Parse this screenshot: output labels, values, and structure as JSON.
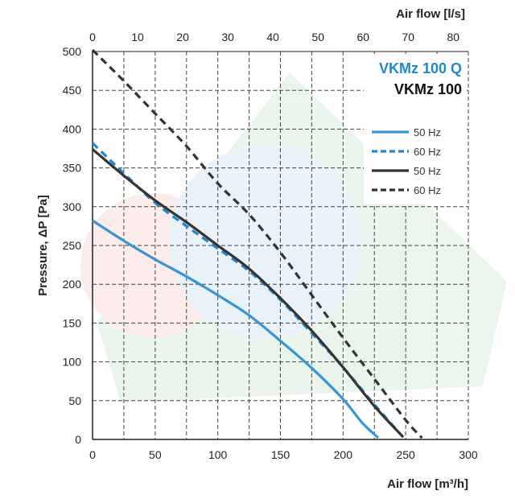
{
  "chart_data": {
    "type": "line",
    "xlabel_bottom": "Air flow [m³/h]",
    "xlabel_top": "Air flow [l/s]",
    "ylabel": "Pressure, ΔP [Pa]",
    "xlim": [
      0,
      300
    ],
    "ylim": [
      0,
      500
    ],
    "x_ticks_bottom": [
      "0",
      "50",
      "100",
      "150",
      "200",
      "250",
      "300"
    ],
    "x_ticks_top": [
      "0",
      "10",
      "20",
      "30",
      "40",
      "50",
      "60",
      "70",
      "80"
    ],
    "y_ticks": [
      "0",
      "50",
      "100",
      "150",
      "200",
      "250",
      "300",
      "350",
      "400",
      "450",
      "500"
    ],
    "grid": true,
    "legend_position": "top-right",
    "models": [
      {
        "label": "VKMz 100 Q",
        "color": "#1e88cf"
      },
      {
        "label": "VKMz 100",
        "color": "#111111"
      }
    ],
    "series": [
      {
        "name": "50 Hz",
        "model": "VKMz 100 Q",
        "color": "#3a94d4",
        "dash": "solid",
        "points": [
          [
            0,
            282
          ],
          [
            25,
            256
          ],
          [
            50,
            232
          ],
          [
            75,
            210
          ],
          [
            100,
            186
          ],
          [
            125,
            160
          ],
          [
            150,
            127
          ],
          [
            175,
            92
          ],
          [
            200,
            52
          ],
          [
            215,
            22
          ],
          [
            228,
            2
          ]
        ]
      },
      {
        "name": "60 Hz",
        "model": "VKMz 100 Q",
        "color": "#1e88cf",
        "dash": "dashed",
        "points": [
          [
            0,
            382
          ],
          [
            25,
            343
          ],
          [
            50,
            305
          ],
          [
            75,
            275
          ],
          [
            100,
            246
          ],
          [
            125,
            217
          ],
          [
            150,
            180
          ],
          [
            175,
            137
          ],
          [
            200,
            93
          ],
          [
            225,
            45
          ],
          [
            248,
            3
          ]
        ]
      },
      {
        "name": "50 Hz",
        "model": "VKMz 100",
        "color": "#333333",
        "dash": "solid",
        "points": [
          [
            0,
            374
          ],
          [
            25,
            340
          ],
          [
            50,
            308
          ],
          [
            75,
            280
          ],
          [
            100,
            250
          ],
          [
            125,
            220
          ],
          [
            150,
            182
          ],
          [
            175,
            140
          ],
          [
            200,
            93
          ],
          [
            225,
            43
          ],
          [
            248,
            3
          ]
        ]
      },
      {
        "name": "60 Hz",
        "model": "VKMz 100",
        "color": "#333333",
        "dash": "dashed",
        "points": [
          [
            0,
            502
          ],
          [
            25,
            462
          ],
          [
            50,
            420
          ],
          [
            75,
            378
          ],
          [
            100,
            330
          ],
          [
            125,
            290
          ],
          [
            150,
            241
          ],
          [
            175,
            186
          ],
          [
            200,
            131
          ],
          [
            225,
            78
          ],
          [
            250,
            25
          ],
          [
            263,
            2
          ]
        ]
      }
    ]
  }
}
